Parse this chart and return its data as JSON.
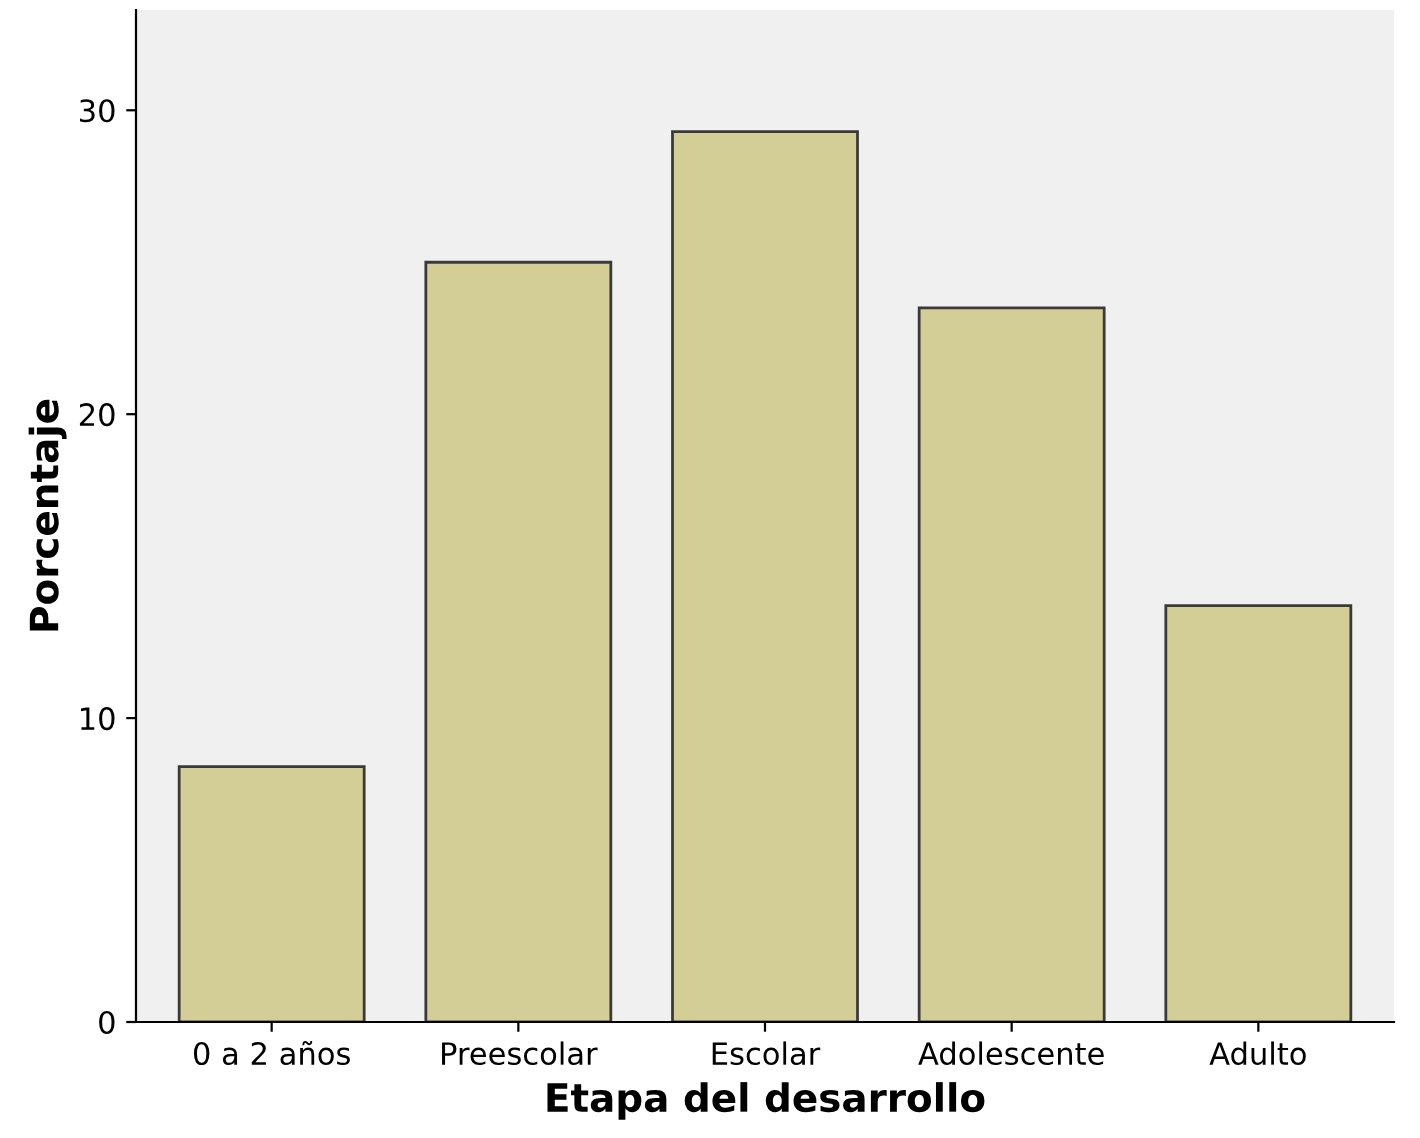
{
  "chart_data": {
    "type": "bar",
    "xlabel": "Etapa del desarrollo",
    "ylabel": "Porcentaje",
    "categories": [
      "0 a 2 años",
      "Preescolar",
      "Escolar",
      "Adolescente",
      "Adulto"
    ],
    "values": [
      8.4,
      25.0,
      29.3,
      23.5,
      13.7
    ],
    "color": "#d3ce96",
    "ylim": [
      0,
      33.3
    ],
    "yticks": [
      0,
      10,
      20,
      30
    ],
    "grid": false
  }
}
